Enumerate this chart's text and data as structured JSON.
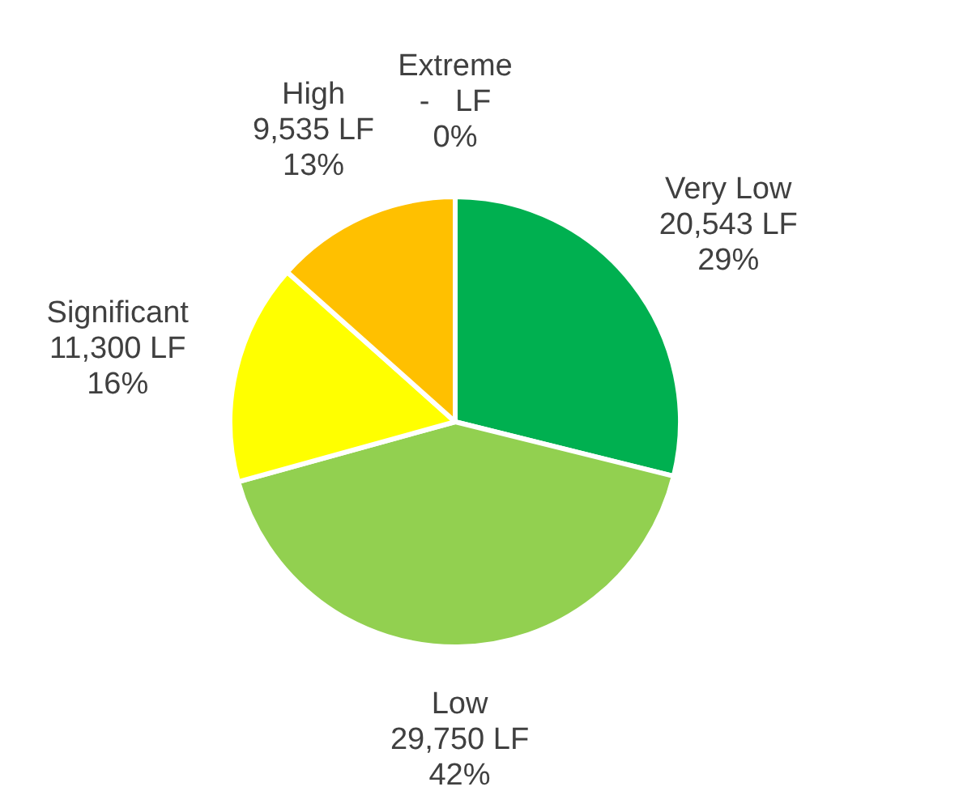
{
  "chart_data": {
    "type": "pie",
    "categories": [
      "Very Low",
      "Low",
      "Significant",
      "High",
      "Extreme"
    ],
    "values": [
      20543,
      29750,
      11300,
      9535,
      0
    ],
    "colors": [
      "#00b050",
      "#92d050",
      "#ffff00",
      "#ffc000",
      "#ff0000"
    ],
    "value_labels": [
      "20,543 LF\n29%",
      "29,750 LF\n42%",
      "11,300 LF\n16%",
      "9,535 LF\n13%",
      "-   LF\n0%"
    ],
    "legend": false
  }
}
